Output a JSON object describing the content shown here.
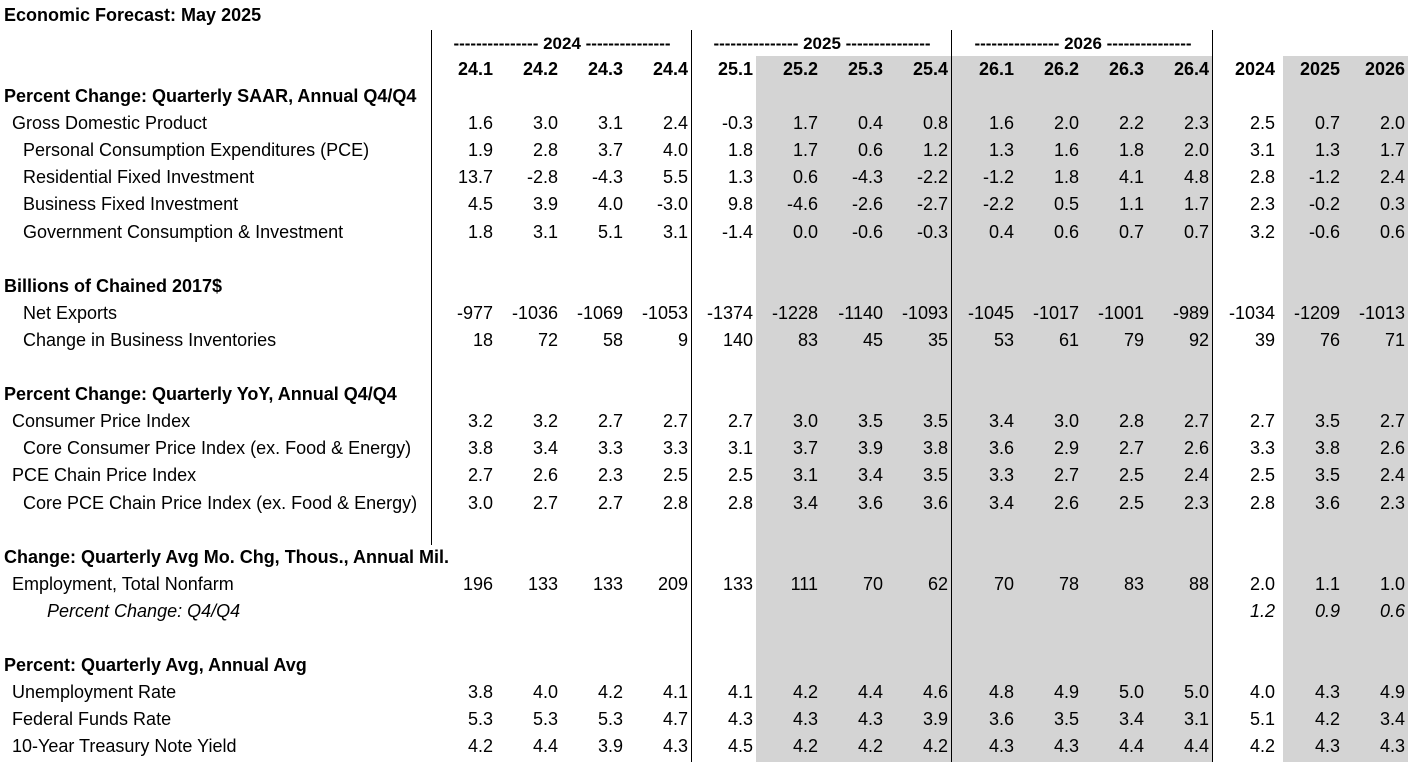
{
  "title": "Economic Forecast: May 2025",
  "year_groups": [
    "--------------- 2024 ---------------",
    "--------------- 2025 ---------------",
    "--------------- 2026 ---------------"
  ],
  "columns": [
    "24.1",
    "24.2",
    "24.3",
    "24.4",
    "25.1",
    "25.2",
    "25.3",
    "25.4",
    "26.1",
    "26.2",
    "26.3",
    "26.4",
    "2024",
    "2025",
    "2026"
  ],
  "rows": [
    {
      "type": "section",
      "label": "Percent Change: Quarterly SAAR, Annual Q4/Q4"
    },
    {
      "type": "data",
      "indent": 1,
      "label": "Gross Domestic Product",
      "values": [
        "1.6",
        "3.0",
        "3.1",
        "2.4",
        "-0.3",
        "1.7",
        "0.4",
        "0.8",
        "1.6",
        "2.0",
        "2.2",
        "2.3",
        "2.5",
        "0.7",
        "2.0"
      ]
    },
    {
      "type": "data",
      "indent": 2,
      "label": "Personal Consumption Expenditures (PCE)",
      "values": [
        "1.9",
        "2.8",
        "3.7",
        "4.0",
        "1.8",
        "1.7",
        "0.6",
        "1.2",
        "1.3",
        "1.6",
        "1.8",
        "2.0",
        "3.1",
        "1.3",
        "1.7"
      ]
    },
    {
      "type": "data",
      "indent": 2,
      "label": "Residential Fixed Investment",
      "values": [
        "13.7",
        "-2.8",
        "-4.3",
        "5.5",
        "1.3",
        "0.6",
        "-4.3",
        "-2.2",
        "-1.2",
        "1.8",
        "4.1",
        "4.8",
        "2.8",
        "-1.2",
        "2.4"
      ]
    },
    {
      "type": "data",
      "indent": 2,
      "label": "Business Fixed Investment",
      "values": [
        "4.5",
        "3.9",
        "4.0",
        "-3.0",
        "9.8",
        "-4.6",
        "-2.6",
        "-2.7",
        "-2.2",
        "0.5",
        "1.1",
        "1.7",
        "2.3",
        "-0.2",
        "0.3"
      ]
    },
    {
      "type": "data",
      "indent": 2,
      "label": "Government Consumption & Investment",
      "values": [
        "1.8",
        "3.1",
        "5.1",
        "3.1",
        "-1.4",
        "0.0",
        "-0.6",
        "-0.3",
        "0.4",
        "0.6",
        "0.7",
        "0.7",
        "3.2",
        "-0.6",
        "0.6"
      ]
    },
    {
      "type": "blank"
    },
    {
      "type": "section",
      "label": "Billions of Chained 2017$"
    },
    {
      "type": "data",
      "indent": 2,
      "label": "Net Exports",
      "values": [
        "-977",
        "-1036",
        "-1069",
        "-1053",
        "-1374",
        "-1228",
        "-1140",
        "-1093",
        "-1045",
        "-1017",
        "-1001",
        "-989",
        "-1034",
        "-1209",
        "-1013"
      ]
    },
    {
      "type": "data",
      "indent": 2,
      "label": "Change in Business Inventories",
      "values": [
        "18",
        "72",
        "58",
        "9",
        "140",
        "83",
        "45",
        "35",
        "53",
        "61",
        "79",
        "92",
        "39",
        "76",
        "71"
      ]
    },
    {
      "type": "blank"
    },
    {
      "type": "section",
      "label": "Percent Change: Quarterly YoY, Annual Q4/Q4"
    },
    {
      "type": "data",
      "indent": 1,
      "label": "Consumer Price Index",
      "values": [
        "3.2",
        "3.2",
        "2.7",
        "2.7",
        "2.7",
        "3.0",
        "3.5",
        "3.5",
        "3.4",
        "3.0",
        "2.8",
        "2.7",
        "2.7",
        "3.5",
        "2.7"
      ]
    },
    {
      "type": "data",
      "indent": 2,
      "label": "Core Consumer Price Index (ex. Food & Energy)",
      "values": [
        "3.8",
        "3.4",
        "3.3",
        "3.3",
        "3.1",
        "3.7",
        "3.9",
        "3.8",
        "3.6",
        "2.9",
        "2.7",
        "2.6",
        "3.3",
        "3.8",
        "2.6"
      ]
    },
    {
      "type": "data",
      "indent": 1,
      "label": "PCE Chain Price Index",
      "values": [
        "2.7",
        "2.6",
        "2.3",
        "2.5",
        "2.5",
        "3.1",
        "3.4",
        "3.5",
        "3.3",
        "2.7",
        "2.5",
        "2.4",
        "2.5",
        "3.5",
        "2.4"
      ]
    },
    {
      "type": "data",
      "indent": 2,
      "label": "Core PCE Chain Price Index (ex. Food & Energy)",
      "values": [
        "3.0",
        "2.7",
        "2.7",
        "2.8",
        "2.8",
        "3.4",
        "3.6",
        "3.6",
        "3.4",
        "2.6",
        "2.5",
        "2.3",
        "2.8",
        "3.6",
        "2.3"
      ]
    },
    {
      "type": "blank"
    },
    {
      "type": "section",
      "label": "Change: Quarterly Avg Mo. Chg, Thous., Annual Mil."
    },
    {
      "type": "data",
      "indent": 1,
      "label": "Employment, Total Nonfarm",
      "values": [
        "196",
        "133",
        "133",
        "209",
        "133",
        "111",
        "70",
        "62",
        "70",
        "78",
        "83",
        "88",
        "2.0",
        "1.1",
        "1.0"
      ]
    },
    {
      "type": "data",
      "indent": 3,
      "italic": true,
      "label": "Percent Change: Q4/Q4",
      "values": [
        "",
        "",
        "",
        "",
        "",
        "",
        "",
        "",
        "",
        "",
        "",
        "",
        "1.2",
        "0.9",
        "0.6"
      ]
    },
    {
      "type": "blank"
    },
    {
      "type": "section",
      "label": "Percent: Quarterly Avg, Annual Avg"
    },
    {
      "type": "data",
      "indent": 1,
      "label": "Unemployment Rate",
      "values": [
        "3.8",
        "4.0",
        "4.2",
        "4.1",
        "4.1",
        "4.2",
        "4.4",
        "4.6",
        "4.8",
        "4.9",
        "5.0",
        "5.0",
        "4.0",
        "4.3",
        "4.9"
      ]
    },
    {
      "type": "data",
      "indent": 1,
      "label": "Federal Funds Rate",
      "values": [
        "5.3",
        "5.3",
        "5.3",
        "4.7",
        "4.3",
        "4.3",
        "4.3",
        "3.9",
        "3.6",
        "3.5",
        "3.4",
        "3.1",
        "5.1",
        "4.2",
        "3.4"
      ]
    },
    {
      "type": "data",
      "indent": 1,
      "label": "10-Year Treasury Note Yield",
      "values": [
        "4.2",
        "4.4",
        "3.9",
        "4.3",
        "4.5",
        "4.2",
        "4.2",
        "4.2",
        "4.3",
        "4.3",
        "4.4",
        "4.4",
        "4.2",
        "4.3",
        "4.3"
      ]
    }
  ]
}
